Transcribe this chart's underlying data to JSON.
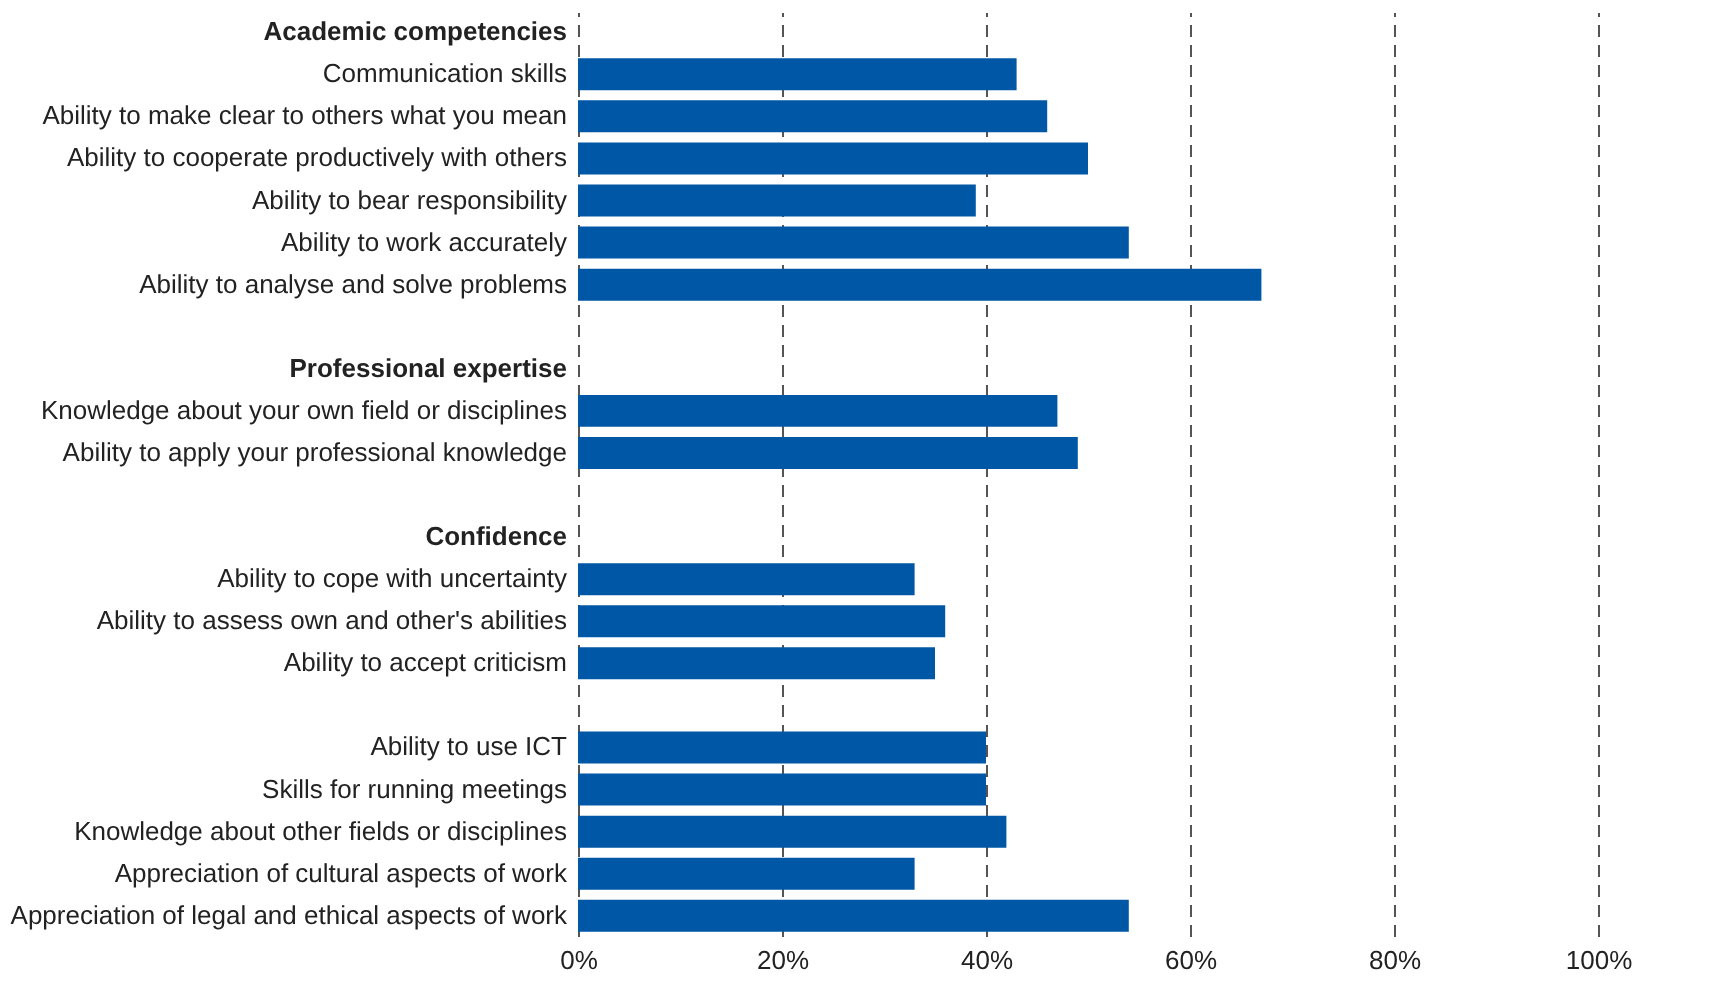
{
  "chart_data": {
    "type": "bar",
    "orientation": "horizontal",
    "categories": [
      "Academic competencies",
      "Communication skills",
      "Ability to make clear to others what you mean",
      "Ability to cooperate productively with others",
      "Ability to bear responsibility",
      "Ability to work accurately",
      "Ability to analyse and solve problems",
      null,
      "Professional expertise",
      "Knowledge about your own field or disciplines",
      "Ability to apply your professional knowledge",
      null,
      "Confidence",
      "Ability to cope with uncertainty",
      "Ability to assess own and other's abilities",
      "Ability to accept criticism",
      null,
      "Ability to use ICT",
      "Skills for running meetings",
      "Knowledge about other fields or disciplines",
      "Appreciation of cultural aspects of work",
      "Appreciation of legal and ethical aspects of work"
    ],
    "values": [
      null,
      43,
      46,
      50,
      39,
      54,
      67,
      null,
      null,
      47,
      49,
      null,
      null,
      33,
      36,
      35,
      null,
      40,
      40,
      42,
      33,
      54
    ],
    "color": "#0057a6",
    "xlim": [
      0,
      100
    ],
    "xticks": [
      {
        "value": 0,
        "label": "0%"
      },
      {
        "value": 20,
        "label": "20%"
      },
      {
        "value": 40,
        "label": "40%"
      },
      {
        "value": 60,
        "label": "60%"
      },
      {
        "value": 80,
        "label": "80%"
      },
      {
        "value": 100,
        "label": "100%"
      }
    ],
    "grid": "x"
  }
}
